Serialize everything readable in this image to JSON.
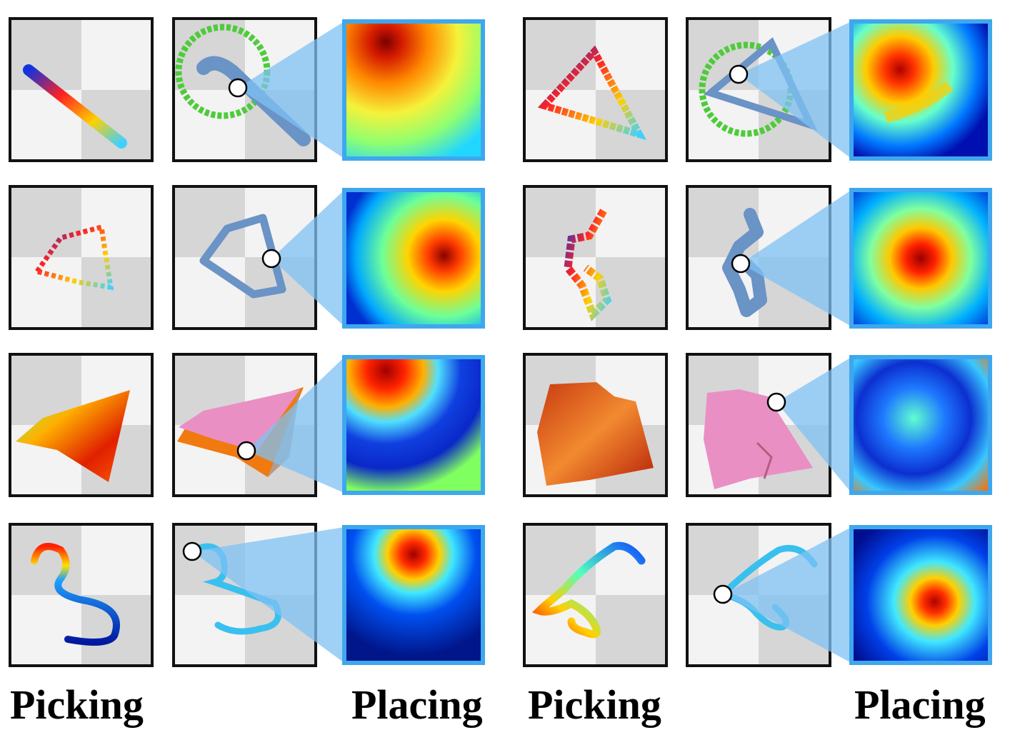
{
  "captions": {
    "left_picking": "Picking",
    "left_placing": "Placing",
    "right_picking": "Picking",
    "right_placing": "Placing"
  },
  "colors": {
    "tile_border": "#111111",
    "heatmap_border": "#3fa7ee",
    "projection": "#7fc2f3",
    "checker_light": "#f3f3f3",
    "checker_dark": "#d6d6d6",
    "object_blue": "#6a93c6",
    "cloth_pink": "#e98fc4",
    "cloth_orange": "#f07a10",
    "rope_cyan": "#39c0ef",
    "goal_green": "#4ecb3a"
  },
  "rows": [
    {
      "object": "rope",
      "object_right": "rope"
    },
    {
      "object": "ring",
      "object_right": "ring"
    },
    {
      "object": "cloth",
      "object_right": "cloth"
    },
    {
      "object": "cable",
      "object_right": "cable"
    }
  ]
}
